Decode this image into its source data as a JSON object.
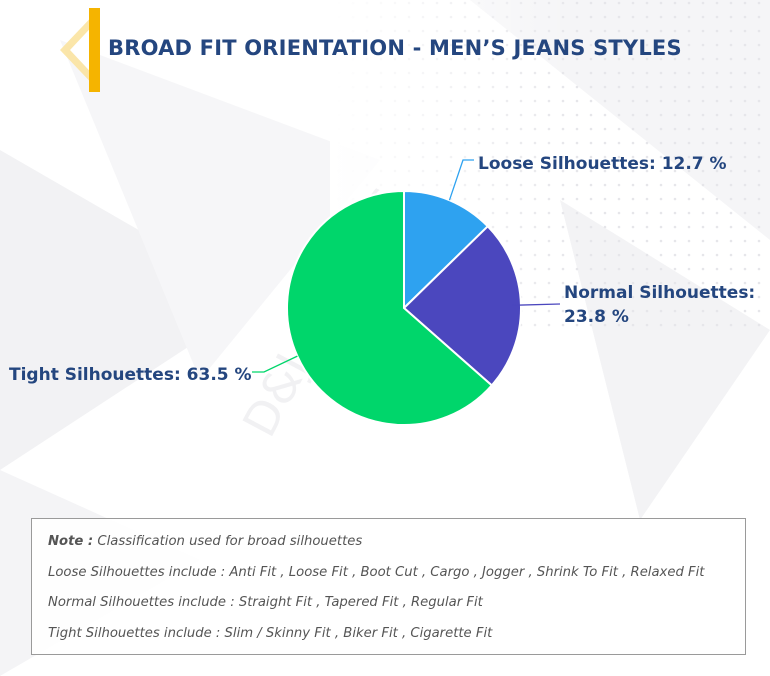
{
  "title": "BROAD FIT ORIENTATION - MEN’S JEANS STYLES",
  "watermark": "D&J Reports",
  "colors": {
    "title": "#24467f",
    "accent": "#f5b400",
    "loose": "#2ea2f0",
    "normal": "#4b47be",
    "tight": "#00d66b"
  },
  "chart_data": {
    "type": "pie",
    "title": "",
    "slices": [
      {
        "name": "Loose Silhouettes",
        "value": 12.7,
        "label": "Loose Silhouettes: 12.7 %"
      },
      {
        "name": "Normal Silhouettes",
        "value": 23.8,
        "label_line1": "Normal Silhouettes:",
        "label_line2": "23.8 %"
      },
      {
        "name": "Tight Silhouettes",
        "value": 63.5,
        "label": "Tight Silhouettes: 63.5 %"
      }
    ]
  },
  "note": {
    "heading_key": "Note :",
    "heading_text": " Classification used for broad silhouettes",
    "lines": [
      {
        "key": "Loose Silhouettes include :",
        "text": " Anti Fit , Loose Fit , Boot Cut , Cargo , Jogger , Shrink To Fit , Relaxed Fit"
      },
      {
        "key": "Normal Silhouettes include :",
        "text": " Straight Fit , Tapered Fit , Regular Fit"
      },
      {
        "key": "Tight Silhouettes include :",
        "text": " Slim / Skinny Fit , Biker Fit , Cigarette Fit"
      }
    ]
  }
}
